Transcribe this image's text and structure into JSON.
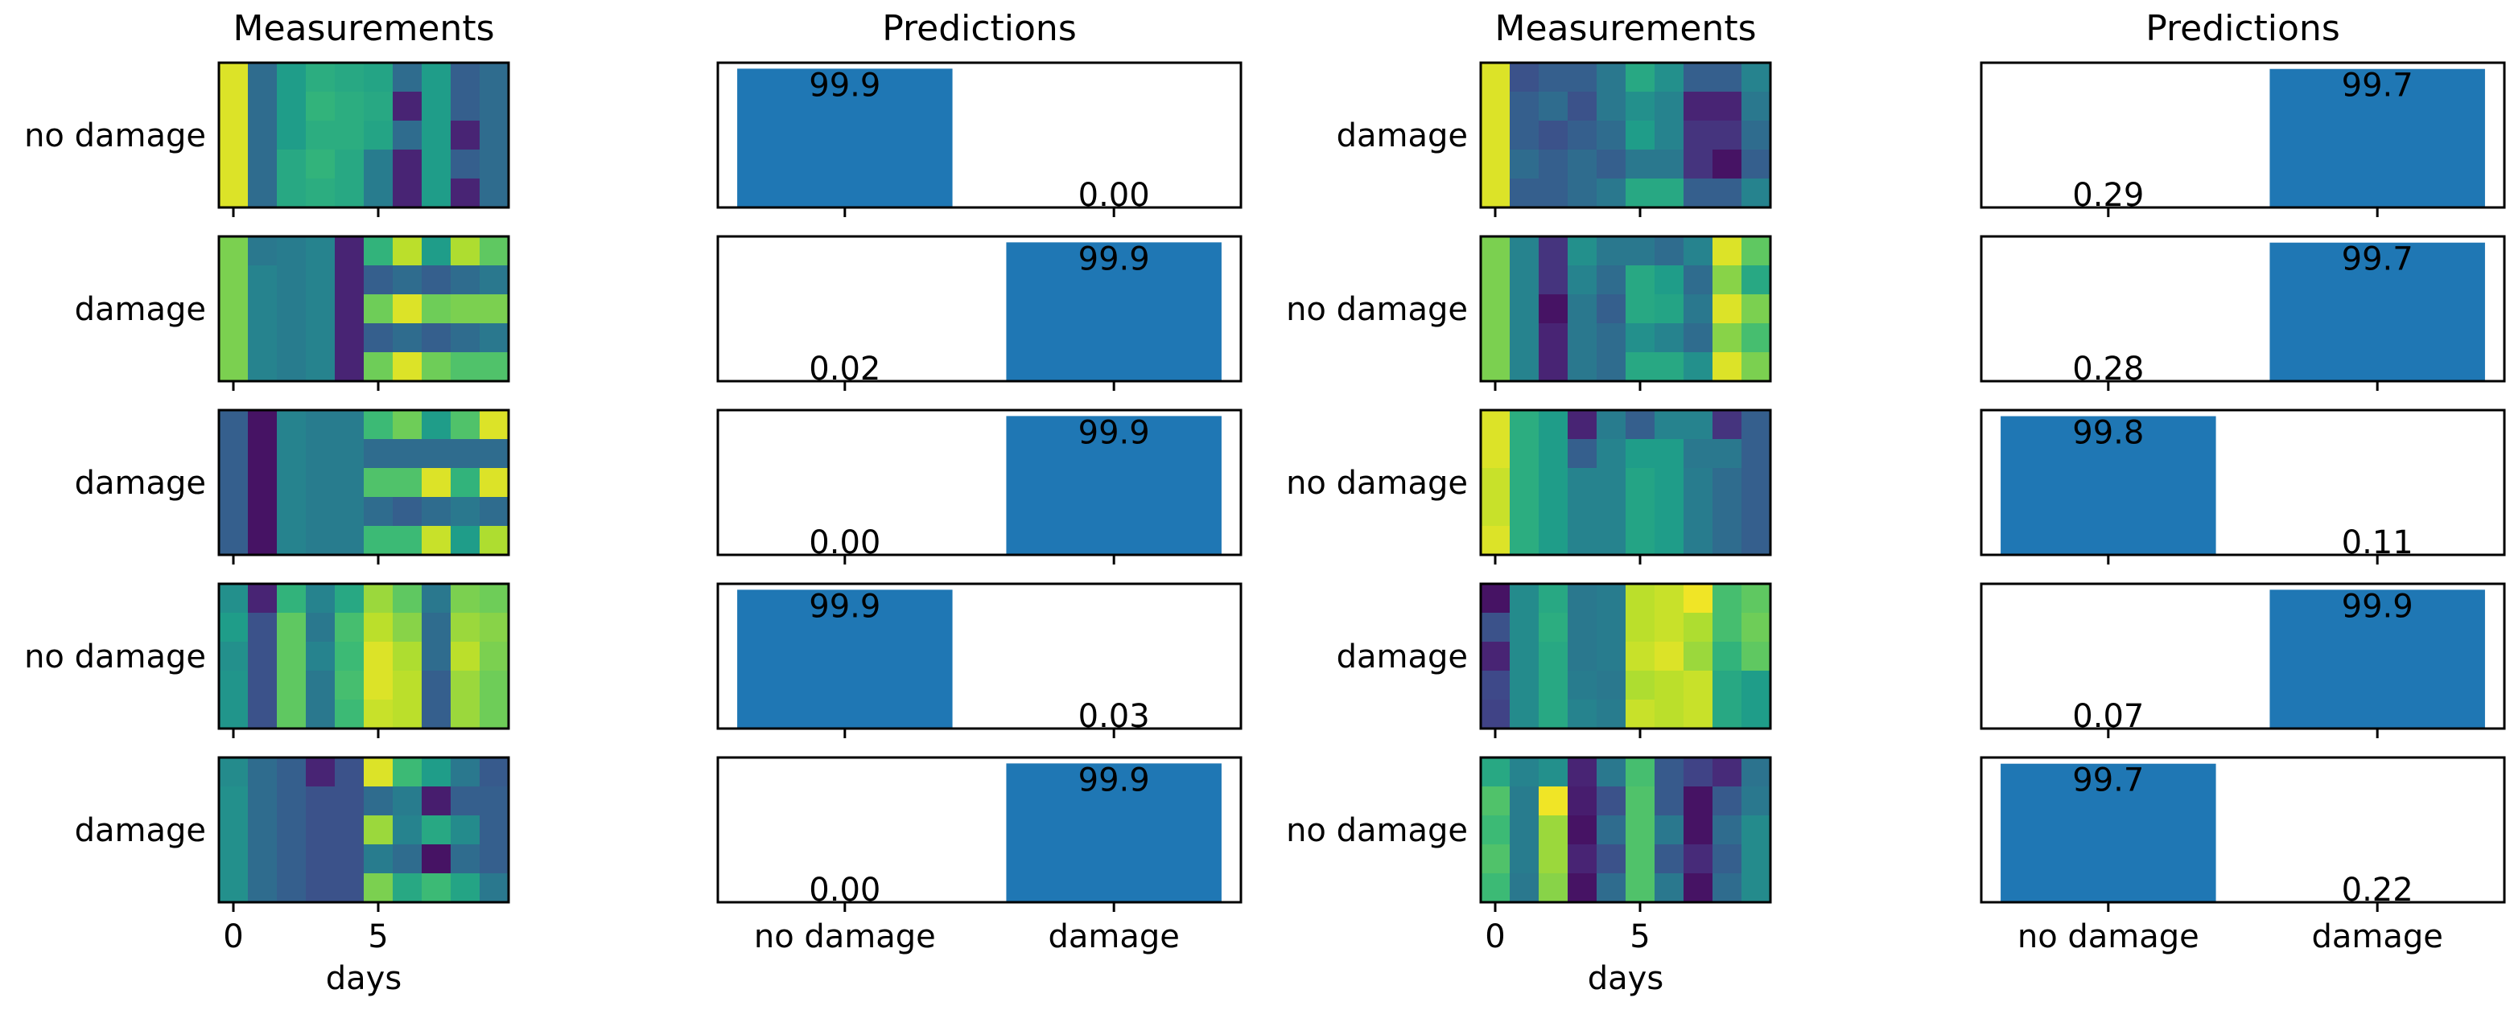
{
  "chart_data": [
    {
      "type": "heatmap",
      "title": "Measurements",
      "xlabel": "days",
      "xticks": [
        0,
        5
      ],
      "x_range": [
        -0.5,
        9.5
      ],
      "colormap": "viridis",
      "value_range": [
        0,
        1
      ],
      "row_labels": [
        "no damage",
        "damage",
        "damage",
        "no damage",
        "damage"
      ],
      "matrices": [
        [
          [
            0.95,
            0.35,
            0.55,
            0.62,
            0.6,
            0.58,
            0.35,
            0.55,
            0.3,
            0.35
          ],
          [
            0.95,
            0.35,
            0.55,
            0.65,
            0.62,
            0.6,
            0.1,
            0.55,
            0.3,
            0.35
          ],
          [
            0.95,
            0.35,
            0.55,
            0.62,
            0.62,
            0.58,
            0.35,
            0.55,
            0.1,
            0.35
          ],
          [
            0.95,
            0.35,
            0.6,
            0.65,
            0.6,
            0.42,
            0.1,
            0.55,
            0.3,
            0.35
          ],
          [
            0.95,
            0.35,
            0.6,
            0.62,
            0.6,
            0.42,
            0.1,
            0.55,
            0.1,
            0.35
          ]
        ],
        [
          [
            0.8,
            0.4,
            0.42,
            0.45,
            0.1,
            0.65,
            0.9,
            0.55,
            0.88,
            0.75
          ],
          [
            0.8,
            0.45,
            0.42,
            0.45,
            0.1,
            0.3,
            0.35,
            0.3,
            0.35,
            0.4
          ],
          [
            0.8,
            0.45,
            0.42,
            0.45,
            0.1,
            0.78,
            0.95,
            0.78,
            0.8,
            0.8
          ],
          [
            0.8,
            0.45,
            0.42,
            0.45,
            0.1,
            0.3,
            0.35,
            0.3,
            0.35,
            0.4
          ],
          [
            0.8,
            0.45,
            0.42,
            0.45,
            0.1,
            0.78,
            0.95,
            0.78,
            0.72,
            0.72
          ]
        ],
        [
          [
            0.3,
            0.05,
            0.45,
            0.42,
            0.42,
            0.68,
            0.78,
            0.55,
            0.72,
            0.95
          ],
          [
            0.3,
            0.05,
            0.45,
            0.42,
            0.42,
            0.35,
            0.35,
            0.35,
            0.35,
            0.35
          ],
          [
            0.3,
            0.05,
            0.45,
            0.42,
            0.42,
            0.72,
            0.72,
            0.95,
            0.65,
            0.95
          ],
          [
            0.3,
            0.05,
            0.45,
            0.42,
            0.42,
            0.35,
            0.3,
            0.35,
            0.4,
            0.35
          ],
          [
            0.3,
            0.05,
            0.45,
            0.42,
            0.42,
            0.68,
            0.68,
            0.92,
            0.55,
            0.88
          ]
        ],
        [
          [
            0.5,
            0.1,
            0.65,
            0.45,
            0.6,
            0.85,
            0.75,
            0.4,
            0.8,
            0.78
          ],
          [
            0.55,
            0.25,
            0.75,
            0.4,
            0.7,
            0.9,
            0.82,
            0.35,
            0.85,
            0.82
          ],
          [
            0.5,
            0.25,
            0.75,
            0.45,
            0.68,
            0.95,
            0.88,
            0.35,
            0.9,
            0.8
          ],
          [
            0.52,
            0.25,
            0.75,
            0.4,
            0.7,
            0.95,
            0.9,
            0.3,
            0.85,
            0.78
          ],
          [
            0.52,
            0.25,
            0.75,
            0.4,
            0.68,
            0.92,
            0.9,
            0.3,
            0.85,
            0.78
          ]
        ],
        [
          [
            0.48,
            0.35,
            0.3,
            0.1,
            0.25,
            0.95,
            0.68,
            0.55,
            0.4,
            0.28
          ],
          [
            0.5,
            0.35,
            0.3,
            0.25,
            0.25,
            0.35,
            0.42,
            0.08,
            0.3,
            0.3
          ],
          [
            0.5,
            0.35,
            0.3,
            0.25,
            0.25,
            0.85,
            0.45,
            0.6,
            0.48,
            0.3
          ],
          [
            0.5,
            0.35,
            0.3,
            0.25,
            0.25,
            0.42,
            0.35,
            0.05,
            0.35,
            0.3
          ],
          [
            0.5,
            0.35,
            0.3,
            0.25,
            0.25,
            0.8,
            0.6,
            0.68,
            0.58,
            0.4
          ]
        ]
      ]
    },
    {
      "type": "bar",
      "title": "Predictions",
      "categories": [
        "no damage",
        "damage"
      ],
      "ylim": [
        0,
        100
      ],
      "bar_color": "#1f77b4",
      "panels": [
        {
          "values": [
            99.9,
            0.0
          ],
          "labels": [
            "99.9",
            "0.00"
          ]
        },
        {
          "values": [
            0.02,
            99.9
          ],
          "labels": [
            "0.02",
            "99.9"
          ]
        },
        {
          "values": [
            0.0,
            99.9
          ],
          "labels": [
            "0.00",
            "99.9"
          ]
        },
        {
          "values": [
            99.9,
            0.03
          ],
          "labels": [
            "99.9",
            "0.03"
          ]
        },
        {
          "values": [
            0.0,
            99.9
          ],
          "labels": [
            "0.00",
            "99.9"
          ]
        }
      ]
    },
    {
      "type": "heatmap",
      "title": "Measurements",
      "xlabel": "days",
      "xticks": [
        0,
        5
      ],
      "x_range": [
        -0.5,
        9.5
      ],
      "colormap": "viridis",
      "value_range": [
        0,
        1
      ],
      "row_labels": [
        "damage",
        "no damage",
        "no damage",
        "damage",
        "no damage"
      ],
      "matrices": [
        [
          [
            0.95,
            0.25,
            0.3,
            0.3,
            0.4,
            0.6,
            0.5,
            0.3,
            0.3,
            0.45
          ],
          [
            0.95,
            0.3,
            0.35,
            0.25,
            0.4,
            0.5,
            0.45,
            0.1,
            0.1,
            0.4
          ],
          [
            0.95,
            0.3,
            0.25,
            0.3,
            0.35,
            0.55,
            0.45,
            0.15,
            0.15,
            0.35
          ],
          [
            0.95,
            0.35,
            0.3,
            0.35,
            0.3,
            0.4,
            0.4,
            0.15,
            0.05,
            0.3
          ],
          [
            0.95,
            0.3,
            0.3,
            0.35,
            0.4,
            0.6,
            0.6,
            0.3,
            0.3,
            0.45
          ]
        ],
        [
          [
            0.8,
            0.45,
            0.15,
            0.5,
            0.4,
            0.4,
            0.35,
            0.45,
            0.95,
            0.75
          ],
          [
            0.8,
            0.45,
            0.15,
            0.45,
            0.35,
            0.6,
            0.55,
            0.35,
            0.82,
            0.6
          ],
          [
            0.8,
            0.45,
            0.05,
            0.4,
            0.3,
            0.6,
            0.58,
            0.4,
            0.95,
            0.8
          ],
          [
            0.8,
            0.45,
            0.1,
            0.4,
            0.35,
            0.5,
            0.45,
            0.35,
            0.82,
            0.7
          ],
          [
            0.8,
            0.45,
            0.1,
            0.4,
            0.35,
            0.6,
            0.6,
            0.5,
            0.95,
            0.8
          ]
        ],
        [
          [
            0.95,
            0.62,
            0.55,
            0.1,
            0.42,
            0.3,
            0.45,
            0.45,
            0.15,
            0.3
          ],
          [
            0.95,
            0.62,
            0.55,
            0.3,
            0.45,
            0.55,
            0.55,
            0.4,
            0.4,
            0.3
          ],
          [
            0.92,
            0.62,
            0.55,
            0.45,
            0.45,
            0.58,
            0.55,
            0.42,
            0.35,
            0.3
          ],
          [
            0.92,
            0.62,
            0.55,
            0.45,
            0.45,
            0.58,
            0.55,
            0.42,
            0.35,
            0.3
          ],
          [
            0.95,
            0.62,
            0.55,
            0.45,
            0.45,
            0.58,
            0.55,
            0.42,
            0.35,
            0.3
          ]
        ],
        [
          [
            0.05,
            0.48,
            0.6,
            0.4,
            0.42,
            0.9,
            0.92,
            0.98,
            0.7,
            0.75
          ],
          [
            0.25,
            0.48,
            0.62,
            0.4,
            0.42,
            0.9,
            0.92,
            0.88,
            0.7,
            0.78
          ],
          [
            0.1,
            0.48,
            0.6,
            0.4,
            0.42,
            0.92,
            0.95,
            0.85,
            0.65,
            0.75
          ],
          [
            0.22,
            0.48,
            0.6,
            0.42,
            0.4,
            0.88,
            0.9,
            0.92,
            0.6,
            0.55
          ],
          [
            0.2,
            0.48,
            0.6,
            0.45,
            0.42,
            0.92,
            0.9,
            0.92,
            0.6,
            0.55
          ]
        ],
        [
          [
            0.6,
            0.45,
            0.5,
            0.1,
            0.4,
            0.7,
            0.28,
            0.2,
            0.12,
            0.38
          ],
          [
            0.72,
            0.42,
            0.98,
            0.08,
            0.25,
            0.72,
            0.28,
            0.05,
            0.28,
            0.4
          ],
          [
            0.68,
            0.42,
            0.85,
            0.05,
            0.35,
            0.72,
            0.4,
            0.05,
            0.35,
            0.48
          ],
          [
            0.72,
            0.42,
            0.85,
            0.1,
            0.25,
            0.72,
            0.28,
            0.12,
            0.3,
            0.48
          ],
          [
            0.68,
            0.4,
            0.82,
            0.05,
            0.35,
            0.72,
            0.4,
            0.05,
            0.35,
            0.48
          ]
        ]
      ]
    },
    {
      "type": "bar",
      "title": "Predictions",
      "categories": [
        "no damage",
        "damage"
      ],
      "ylim": [
        0,
        100
      ],
      "bar_color": "#1f77b4",
      "panels": [
        {
          "values": [
            0.29,
            99.7
          ],
          "labels": [
            "0.29",
            "99.7"
          ]
        },
        {
          "values": [
            0.28,
            99.7
          ],
          "labels": [
            "0.28",
            "99.7"
          ]
        },
        {
          "values": [
            99.8,
            0.11
          ],
          "labels": [
            "99.8",
            "0.11"
          ]
        },
        {
          "values": [
            0.07,
            99.9
          ],
          "labels": [
            "0.07",
            "99.9"
          ]
        },
        {
          "values": [
            99.7,
            0.22
          ],
          "labels": [
            "99.7",
            "0.22"
          ]
        }
      ]
    }
  ]
}
